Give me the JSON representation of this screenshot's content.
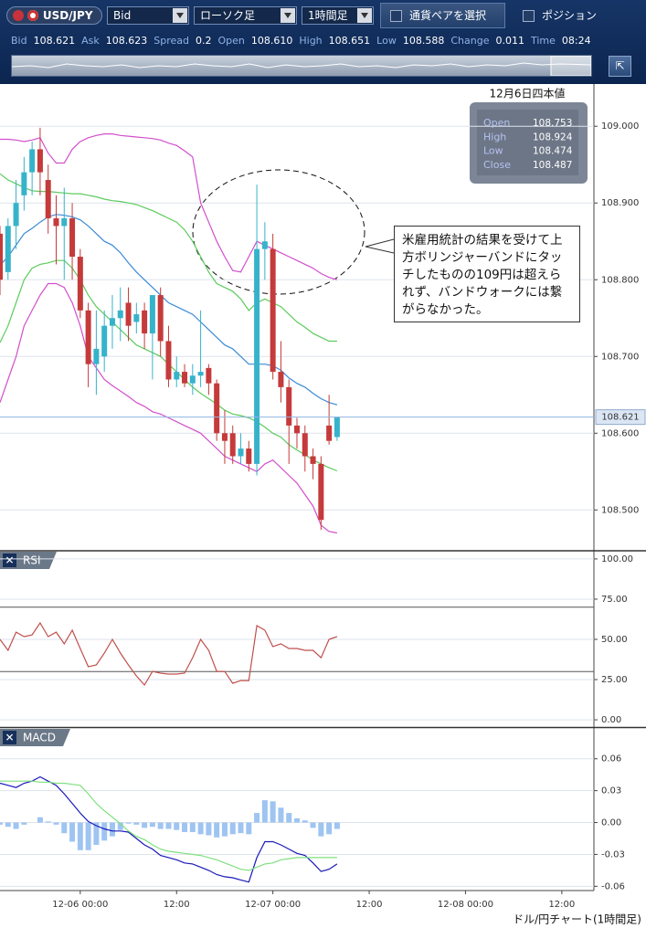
{
  "toolbar": {
    "pair": "USD/JPY",
    "price_type": "Bid",
    "chart_type": "ローソク足",
    "timeframe": "1時間足",
    "pair_button": "通貨ペアを選択",
    "position": "ポジション"
  },
  "quote": [
    {
      "label": "Bid",
      "value": "108.621"
    },
    {
      "label": "Ask",
      "value": "108.623"
    },
    {
      "label": "Spread",
      "value": "0.2"
    },
    {
      "label": "Open",
      "value": "108.610"
    },
    {
      "label": "High",
      "value": "108.651"
    },
    {
      "label": "Low",
      "value": "108.588"
    },
    {
      "label": "Change",
      "value": "0.011"
    },
    {
      "label": "Time",
      "value": "08:24"
    }
  ],
  "chart_data": [
    {
      "type": "candlestick",
      "x": [
        0,
        1,
        2,
        3,
        4,
        5,
        6,
        7,
        8,
        9,
        10,
        11,
        12,
        13,
        14,
        15,
        16,
        17,
        18,
        19,
        20,
        21,
        22,
        23,
        24,
        25,
        26,
        27,
        28,
        29,
        30,
        31,
        32,
        33,
        34,
        35,
        36,
        37,
        38,
        39,
        40,
        41,
        42
      ],
      "open": [
        108.86,
        108.81,
        108.87,
        108.91,
        108.94,
        108.97,
        108.93,
        108.88,
        108.87,
        108.88,
        108.83,
        108.76,
        108.69,
        108.7,
        108.74,
        108.75,
        108.77,
        108.745,
        108.76,
        108.73,
        108.78,
        108.72,
        108.67,
        108.68,
        108.665,
        108.675,
        108.685,
        108.665,
        108.6,
        108.6,
        108.57,
        108.58,
        108.56,
        108.84,
        108.84,
        108.68,
        108.66,
        108.61,
        108.6,
        108.57,
        108.56,
        108.61,
        108.595
      ],
      "high": [
        108.87,
        108.88,
        108.93,
        108.96,
        108.98,
        108.998,
        108.95,
        108.91,
        108.92,
        108.9,
        108.84,
        108.77,
        108.76,
        108.76,
        108.78,
        108.79,
        108.79,
        108.77,
        108.77,
        108.78,
        108.79,
        108.74,
        108.7,
        108.69,
        108.69,
        108.76,
        108.69,
        108.67,
        108.63,
        108.61,
        108.6,
        108.59,
        108.924,
        108.875,
        108.86,
        108.72,
        108.67,
        108.62,
        108.61,
        108.58,
        108.57,
        108.65,
        108.621
      ],
      "low": [
        108.78,
        108.8,
        108.84,
        108.89,
        108.91,
        108.91,
        108.86,
        108.82,
        108.8,
        108.8,
        108.75,
        108.66,
        108.65,
        108.68,
        108.71,
        108.72,
        108.72,
        108.73,
        108.71,
        108.67,
        108.7,
        108.66,
        108.66,
        108.66,
        108.65,
        108.66,
        108.65,
        108.59,
        108.56,
        108.56,
        108.56,
        108.55,
        108.545,
        108.8,
        108.67,
        108.64,
        108.56,
        108.58,
        108.55,
        108.54,
        108.474,
        108.585,
        108.59
      ],
      "close": [
        108.8,
        108.87,
        108.9,
        108.94,
        108.97,
        108.94,
        108.88,
        108.87,
        108.88,
        108.83,
        108.76,
        108.69,
        108.71,
        108.74,
        108.75,
        108.76,
        108.74,
        108.755,
        108.73,
        108.78,
        108.72,
        108.67,
        108.68,
        108.665,
        108.675,
        108.68,
        108.665,
        108.6,
        108.59,
        108.57,
        108.58,
        108.56,
        108.84,
        108.85,
        108.68,
        108.66,
        108.61,
        108.6,
        108.57,
        108.56,
        108.487,
        108.59,
        108.621
      ],
      "up_color": "#36b3cb",
      "down_color": "#c53a3a",
      "series": [
        {
          "color": "#d24fcc",
          "values": [
            108.983,
            108.983,
            108.982,
            108.98,
            108.982,
            108.985,
            108.965,
            108.952,
            108.952,
            108.97,
            108.98,
            108.985,
            108.988,
            108.99,
            108.99,
            108.988,
            108.987,
            108.986,
            108.985,
            108.984,
            108.982,
            108.978,
            108.975,
            108.968,
            108.96,
            108.9,
            108.875,
            108.85,
            108.83,
            108.812,
            108.81,
            108.83,
            108.85,
            108.845,
            108.84,
            108.835,
            108.83,
            108.825,
            108.82,
            108.815,
            108.808,
            108.803,
            108.8
          ]
        },
        {
          "color": "#5ccb5c",
          "values": [
            108.938,
            108.93,
            108.925,
            108.92,
            108.916,
            108.915,
            108.915,
            108.914,
            108.913,
            108.912,
            108.912,
            108.91,
            108.908,
            108.905,
            108.903,
            108.902,
            108.9,
            108.898,
            108.894,
            108.89,
            108.885,
            108.88,
            108.875,
            108.865,
            108.85,
            108.83,
            108.81,
            108.795,
            108.79,
            108.785,
            108.775,
            108.76,
            108.77,
            108.775,
            108.77,
            108.765,
            108.755,
            108.745,
            108.738,
            108.73,
            108.725,
            108.72,
            108.72
          ]
        },
        {
          "color": "#3a8ad6",
          "values": [
            108.819,
            108.83,
            108.845,
            108.86,
            108.867,
            108.875,
            108.882,
            108.885,
            108.884,
            108.882,
            108.878,
            108.87,
            108.86,
            108.85,
            108.845,
            108.835,
            108.822,
            108.81,
            108.8,
            108.79,
            108.78,
            108.77,
            108.765,
            108.76,
            108.755,
            108.745,
            108.735,
            108.725,
            108.715,
            108.71,
            108.7,
            108.69,
            108.69,
            108.69,
            108.688,
            108.682,
            108.672,
            108.665,
            108.66,
            108.652,
            108.645,
            108.64,
            108.637
          ]
        },
        {
          "color": "#5ccb5c",
          "values": [
            108.718,
            108.74,
            108.77,
            108.8,
            108.815,
            108.82,
            108.822,
            108.825,
            108.825,
            108.815,
            108.8,
            108.78,
            108.765,
            108.755,
            108.745,
            108.735,
            108.725,
            108.715,
            108.71,
            108.705,
            108.7,
            108.69,
            108.68,
            108.67,
            108.66,
            108.652,
            108.645,
            108.638,
            108.63,
            108.625,
            108.623,
            108.62,
            108.615,
            108.608,
            108.6,
            108.595,
            108.585,
            108.578,
            108.572,
            108.565,
            108.56,
            108.555,
            108.551
          ]
        },
        {
          "color": "#d24fcc",
          "values": [
            108.64,
            108.67,
            108.7,
            108.74,
            108.76,
            108.78,
            108.795,
            108.795,
            108.79,
            108.77,
            108.74,
            108.7,
            108.685,
            108.67,
            108.662,
            108.655,
            108.648,
            108.64,
            108.635,
            108.628,
            108.625,
            108.62,
            108.615,
            108.61,
            108.605,
            108.6,
            108.59,
            108.58,
            108.57,
            108.565,
            108.56,
            108.555,
            108.55,
            108.56,
            108.565,
            108.555,
            108.545,
            108.535,
            108.52,
            108.505,
            108.48,
            108.472,
            108.47
          ]
        }
      ],
      "xlim": [
        0,
        74
      ],
      "ylim": [
        108.448,
        109.055
      ],
      "yticks": [
        {
          "value": 108.5,
          "label": "108.500"
        },
        {
          "value": 108.6,
          "label": "108.600"
        },
        {
          "value": 108.7,
          "label": "108.700"
        },
        {
          "value": 108.8,
          "label": "108.800"
        },
        {
          "value": 108.9,
          "label": "108.900"
        },
        {
          "value": 109,
          "label": "109.000"
        }
      ],
      "grid": true,
      "current_price": 108.621,
      "info_box": {
        "title": "12月6日四本値",
        "rows": [
          {
            "label": "Open",
            "value": 108.753
          },
          {
            "label": "High",
            "value": 108.924
          },
          {
            "label": "Low",
            "value": 108.474
          },
          {
            "label": "Close",
            "value": 108.487
          }
        ]
      },
      "annotation": "米雇用統計の結果を受けて上方ボリンジャーバンドにタッチしたものの109円は超えられず、バンドウォークには繋がらなかった。"
    },
    {
      "type": "line",
      "title": "RSI",
      "x": [
        0,
        1,
        2,
        3,
        4,
        5,
        6,
        7,
        8,
        9,
        10,
        11,
        12,
        13,
        14,
        15,
        16,
        17,
        18,
        19,
        20,
        21,
        22,
        23,
        24,
        25,
        26,
        27,
        28,
        29,
        30,
        31,
        32,
        33,
        34,
        35,
        36,
        37,
        38,
        39,
        40,
        41,
        42
      ],
      "values": [
        50.0,
        43.2,
        54.5,
        51.7,
        52.8,
        60.2,
        51.7,
        54.5,
        47.2,
        55.7,
        44.3,
        33.0,
        34.1,
        41.5,
        50.0,
        41.5,
        34.1,
        27.3,
        21.6,
        30.1,
        29.0,
        28.4,
        28.4,
        29.0,
        38.6,
        50.0,
        43.2,
        30.1,
        30.1,
        22.7,
        24.4,
        24.4,
        58.5,
        55.7,
        45.5,
        47.2,
        44.3,
        44.3,
        43.2,
        43.2,
        38.6,
        50.0,
        51.7
      ],
      "color": "#c0504d",
      "levels": [
        70,
        30
      ],
      "xlim": [
        0,
        74
      ],
      "ylim": [
        -4.5,
        104.5
      ],
      "yticks": [
        {
          "value": 0,
          "label": "0.00"
        },
        {
          "value": 25,
          "label": "25.00"
        },
        {
          "value": 50,
          "label": "50.00"
        },
        {
          "value": 75,
          "label": "75.00"
        },
        {
          "value": 100,
          "label": "100.00"
        }
      ],
      "grid": true
    },
    {
      "type": "macd",
      "title": "MACD",
      "x": [
        0,
        1,
        2,
        3,
        4,
        5,
        6,
        7,
        8,
        9,
        10,
        11,
        12,
        13,
        14,
        15,
        16,
        17,
        18,
        19,
        20,
        21,
        22,
        23,
        24,
        25,
        26,
        27,
        28,
        29,
        30,
        31,
        32,
        33,
        34,
        35,
        36,
        37,
        38,
        39,
        40,
        41,
        42
      ],
      "series": [
        {
          "color": "#1818b8",
          "values": [
            0.037,
            0.035,
            0.033,
            0.037,
            0.039,
            0.043,
            0.039,
            0.035,
            0.027,
            0.018,
            0.009,
            0.001,
            -0.003,
            -0.006,
            -0.008,
            -0.008,
            -0.009,
            -0.015,
            -0.021,
            -0.025,
            -0.031,
            -0.033,
            -0.035,
            -0.038,
            -0.039,
            -0.042,
            -0.045,
            -0.049,
            -0.051,
            -0.052,
            -0.054,
            -0.056,
            -0.033,
            -0.018,
            -0.018,
            -0.021,
            -0.025,
            -0.029,
            -0.031,
            -0.038,
            -0.046,
            -0.044,
            -0.039
          ]
        },
        {
          "color": "#7fe07f",
          "values": [
            0.039,
            0.039,
            0.039,
            0.039,
            0.039,
            0.038,
            0.038,
            0.037,
            0.037,
            0.036,
            0.035,
            0.027,
            0.018,
            0.011,
            0.005,
            -0.001,
            -0.008,
            -0.013,
            -0.016,
            -0.021,
            -0.025,
            -0.027,
            -0.028,
            -0.029,
            -0.03,
            -0.031,
            -0.033,
            -0.035,
            -0.038,
            -0.041,
            -0.044,
            -0.045,
            -0.042,
            -0.039,
            -0.038,
            -0.035,
            -0.034,
            -0.033,
            -0.033,
            -0.033,
            -0.033,
            -0.033,
            -0.033
          ]
        }
      ],
      "histogram": {
        "color": "#9ec4f2",
        "values": [
          -0.002,
          -0.004,
          -0.006,
          -0.002,
          0,
          0.005,
          0.001,
          -0.002,
          -0.01,
          -0.018,
          -0.026,
          -0.026,
          -0.021,
          -0.017,
          -0.013,
          -0.007,
          -0.001,
          -0.002,
          -0.005,
          -0.004,
          -0.006,
          -0.006,
          -0.007,
          -0.009,
          -0.009,
          -0.011,
          -0.012,
          -0.014,
          -0.013,
          -0.011,
          -0.01,
          -0.011,
          0.009,
          0.021,
          0.02,
          0.014,
          0.009,
          0.004,
          0.002,
          -0.005,
          -0.013,
          -0.011,
          -0.006
        ]
      },
      "xlim": [
        0,
        74
      ],
      "ylim": [
        -0.064,
        0.089
      ],
      "yticks": [
        -0.06,
        -0.03,
        {
          "value": 0,
          "label": "0.00"
        },
        0.03,
        0.06
      ],
      "xticks": [
        {
          "value": 10,
          "label": "12-06 00:00"
        },
        {
          "value": 22,
          "label": "12:00"
        },
        {
          "value": 34,
          "label": "12-07 00:00"
        },
        {
          "value": 46,
          "label": "12:00"
        },
        {
          "value": 58,
          "label": "12-08 00:00"
        },
        {
          "value": 70,
          "label": "12:00"
        }
      ],
      "grid": true
    }
  ],
  "footer": "ドル/円チャート(1時間足)"
}
